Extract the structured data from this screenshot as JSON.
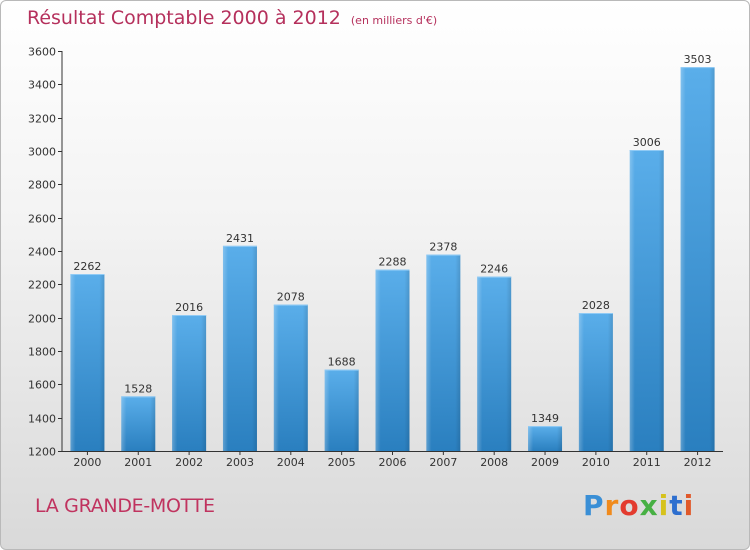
{
  "header": {
    "title": "Résultat Comptable 2000 à 2012",
    "unit": "(en milliers d'€)"
  },
  "footer": {
    "commune": "LA GRANDE-MOTTE",
    "brand": "Proxiti"
  },
  "colors": {
    "title": "#b5305c",
    "bar_light": "#5aaeea",
    "bar_dark": "#2a7fbf",
    "axis": "#333333"
  },
  "chart_data": {
    "type": "bar",
    "title": "Résultat Comptable 2000 à 2012",
    "xlabel": "",
    "ylabel": "",
    "ylim": [
      1200,
      3600
    ],
    "yticks": [
      1200,
      1400,
      1600,
      1800,
      2000,
      2200,
      2400,
      2600,
      2800,
      3000,
      3200,
      3400,
      3600
    ],
    "categories": [
      "2000",
      "2001",
      "2002",
      "2003",
      "2004",
      "2005",
      "2006",
      "2007",
      "2008",
      "2009",
      "2010",
      "2011",
      "2012"
    ],
    "values": [
      2262,
      1528,
      2016,
      2431,
      2078,
      1688,
      2288,
      2378,
      2246,
      1349,
      2028,
      3006,
      3503
    ],
    "grid": false,
    "legend": "none"
  }
}
